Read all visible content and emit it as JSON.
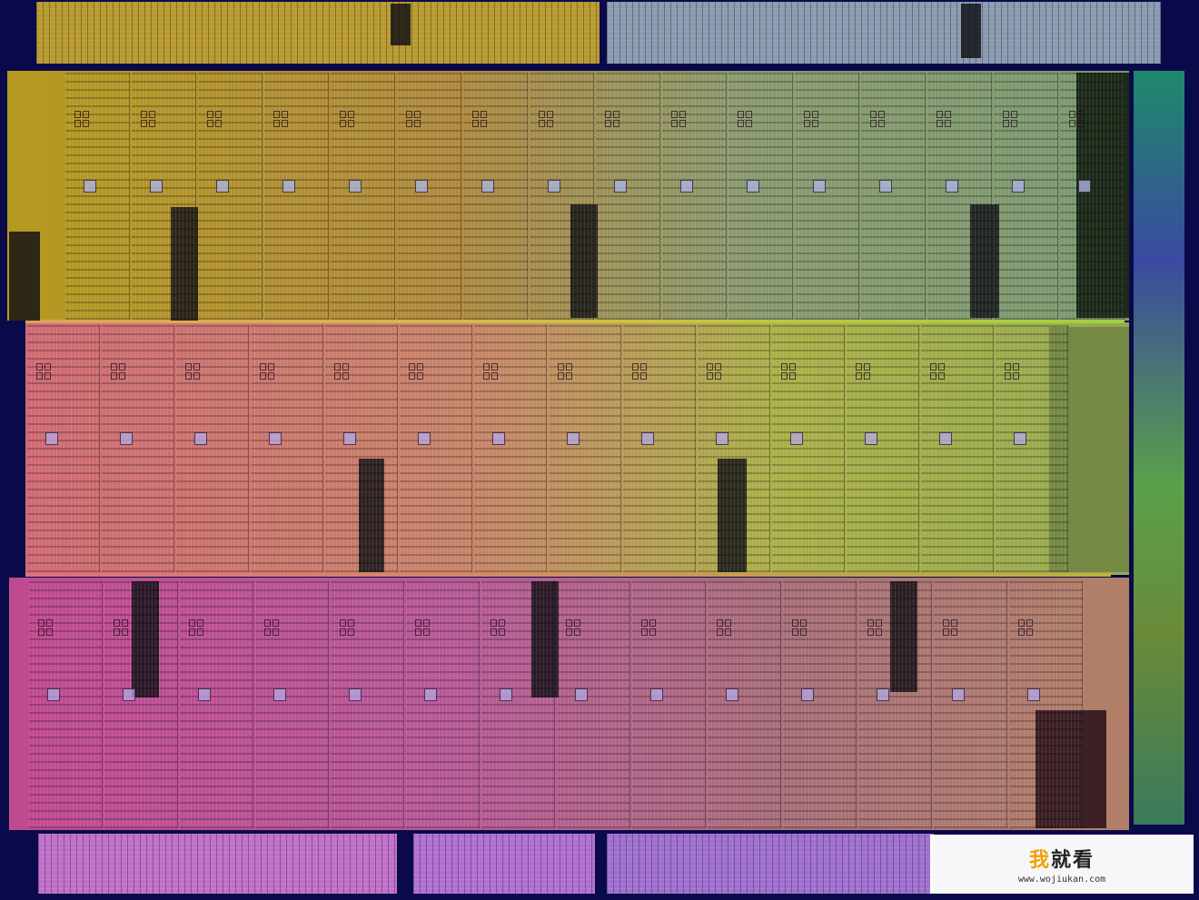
{
  "image": {
    "subject": "multi-core processor die photograph",
    "palette": {
      "top_left": "#b8a020",
      "top_right": "#7a9a7a",
      "middle_left": "#d06a70",
      "middle_right": "#a6b040",
      "bottom_left": "#c04a90",
      "bottom_right": "#b07a6a",
      "background": "#0a0a4a",
      "right_edge": "#2a6a3a"
    }
  },
  "watermark": {
    "brand_first": "我",
    "brand_rest": "就看",
    "url": "www.wojiukan.com"
  }
}
